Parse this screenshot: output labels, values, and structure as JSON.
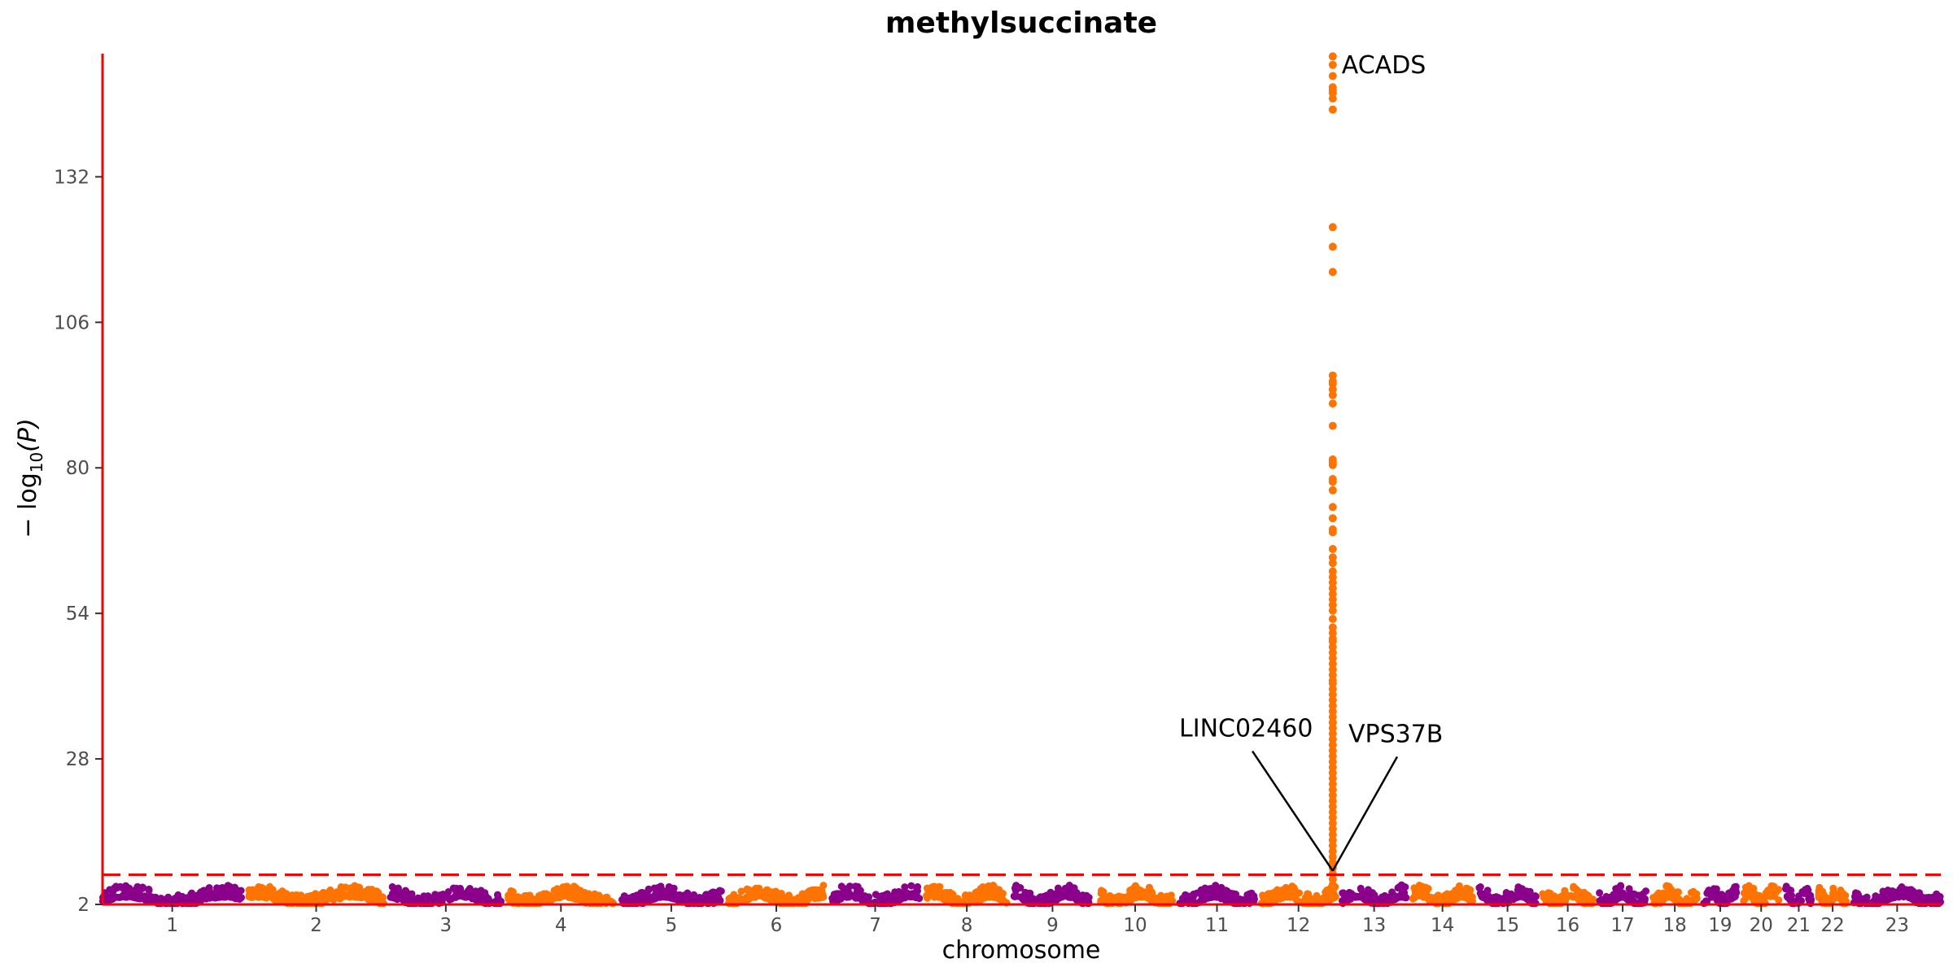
{
  "chart_data": {
    "type": "scatter",
    "subtype": "manhattan",
    "title": "methylsuccinate",
    "xlabel": "chromosome",
    "ylabel_main": "− log",
    "ylabel_sub": "10",
    "ylabel_tail": "(P)",
    "ylim": [
      2,
      154
    ],
    "yticks": [
      2,
      28,
      54,
      80,
      106,
      132
    ],
    "threshold": 7.3,
    "threshold_color": "#ff0000",
    "axis_color": "#ff0000",
    "colors": [
      "#8b008b",
      "#ff7300"
    ],
    "grid": false,
    "chromosomes": [
      {
        "label": "1",
        "size": 249
      },
      {
        "label": "2",
        "size": 242
      },
      {
        "label": "3",
        "size": 198
      },
      {
        "label": "4",
        "size": 190
      },
      {
        "label": "5",
        "size": 181
      },
      {
        "label": "6",
        "size": 171
      },
      {
        "label": "7",
        "size": 159
      },
      {
        "label": "8",
        "size": 145
      },
      {
        "label": "9",
        "size": 138
      },
      {
        "label": "10",
        "size": 134
      },
      {
        "label": "11",
        "size": 135
      },
      {
        "label": "12",
        "size": 133
      },
      {
        "label": "13",
        "size": 114
      },
      {
        "label": "14",
        "size": 107
      },
      {
        "label": "15",
        "size": 102
      },
      {
        "label": "16",
        "size": 90
      },
      {
        "label": "17",
        "size": 83
      },
      {
        "label": "18",
        "size": 80
      },
      {
        "label": "19",
        "size": 59
      },
      {
        "label": "20",
        "size": 64
      },
      {
        "label": "21",
        "size": 47
      },
      {
        "label": "22",
        "size": 51
      },
      {
        "label": "23",
        "size": 156
      }
    ],
    "peak": {
      "chromosome": "12",
      "position_fraction": 0.96,
      "values": [
        153.5,
        152,
        150,
        148,
        147.5,
        147,
        146,
        144,
        123,
        119.5,
        115,
        96.5,
        95.5,
        95,
        94,
        93,
        91.5,
        87.5,
        81.5,
        81,
        80.5,
        78,
        77.5,
        76,
        73,
        71,
        69,
        68.5,
        65.5,
        64,
        63,
        61.5,
        60.5,
        59.5,
        58.5,
        57.5,
        56.5,
        55.5,
        54.5,
        53,
        51.5,
        50.5,
        49.5,
        49,
        48,
        47,
        46,
        45,
        44,
        43,
        42,
        41.5,
        40.5,
        39.5,
        38.5,
        37.5,
        36.5,
        35.5,
        34.5,
        33.5,
        32.5,
        31.5,
        30.5,
        29.5,
        28.5,
        27.5,
        26.5,
        25.5,
        24.5,
        23.5,
        22.5,
        21.5,
        20.5,
        19.5,
        18.5,
        17.5,
        16.5,
        15.5,
        14.5,
        13.5,
        12.5,
        11.5,
        10.5,
        9.5,
        8.5,
        7.5,
        6.5,
        5.5,
        4.5,
        3.5
      ]
    },
    "annotations": [
      {
        "text": "ACADS",
        "y": 150.5,
        "x_chromosome": "12",
        "x_fraction": 1.08,
        "line": false
      },
      {
        "text": "LINC02460",
        "y": 32,
        "x_chromosome": "11",
        "x_fraction": 0.0,
        "line": true,
        "target_y": 8
      },
      {
        "text": "VPS37B",
        "y": 31,
        "x_chromosome": "12",
        "x_fraction": 1.17,
        "line": true,
        "target_y": 8
      }
    ]
  }
}
